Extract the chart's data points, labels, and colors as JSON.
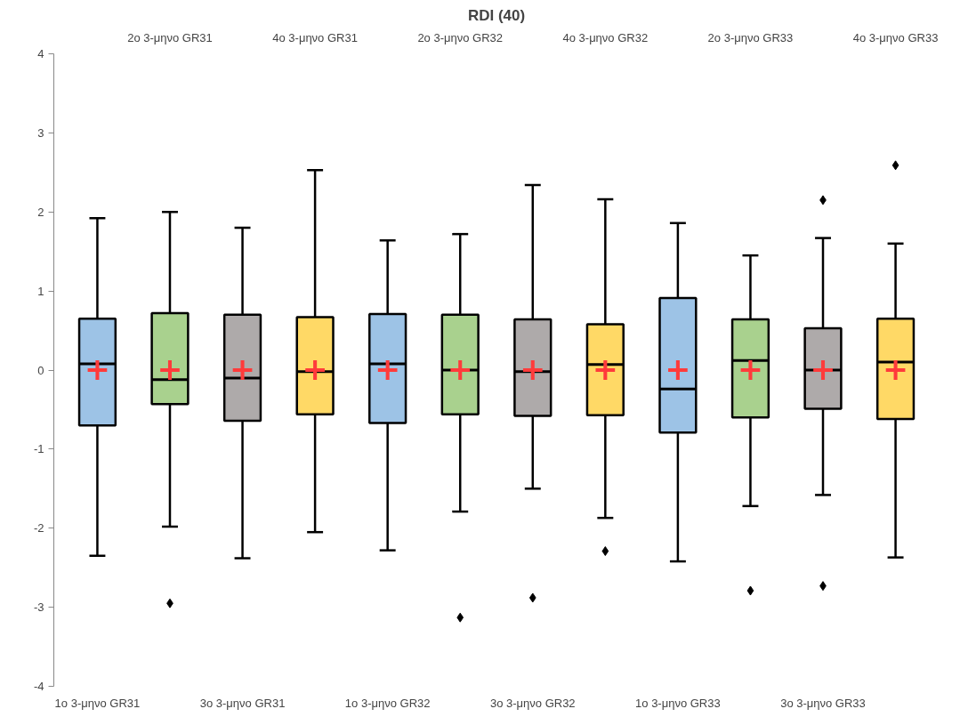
{
  "chart_data": {
    "type": "box",
    "title": "RDI (40)",
    "categories": [
      "1o 3-μηνο GR31",
      "2o 3-μηνο GR31",
      "3o 3-μηνο GR31",
      "4o 3-μηνο GR31",
      "1o 3-μηνο GR32",
      "2o 3-μηνο GR32",
      "3o 3-μηνο GR32",
      "4o 3-μηνο GR32",
      "1o 3-μηνο GR33",
      "2o 3-μηνο GR33",
      "3o 3-μηνο GR33",
      "4o 3-μηνο GR33"
    ],
    "colors": [
      "#9dc3e6",
      "#a9d18e",
      "#aeaaaa",
      "#ffd966",
      "#9dc3e6",
      "#a9d18e",
      "#aeaaaa",
      "#ffd966",
      "#9dc3e6",
      "#a9d18e",
      "#aeaaaa",
      "#ffd966"
    ],
    "boxes": [
      {
        "low": -2.35,
        "q1": -0.7,
        "median": 0.08,
        "q3": 0.65,
        "high": 1.92,
        "mean": 0
      },
      {
        "low": -1.98,
        "q1": -0.43,
        "median": -0.12,
        "q3": 0.72,
        "high": 2.0,
        "mean": 0,
        "outliers": [
          -2.95
        ]
      },
      {
        "low": -2.38,
        "q1": -0.64,
        "median": -0.1,
        "q3": 0.7,
        "high": 1.8,
        "mean": 0
      },
      {
        "low": -2.05,
        "q1": -0.56,
        "median": -0.02,
        "q3": 0.67,
        "high": 2.53,
        "mean": 0
      },
      {
        "low": -2.28,
        "q1": -0.67,
        "median": 0.08,
        "q3": 0.71,
        "high": 1.64,
        "mean": 0
      },
      {
        "low": -1.79,
        "q1": -0.56,
        "median": 0.0,
        "q3": 0.7,
        "high": 1.72,
        "mean": 0,
        "outliers": [
          -3.13
        ]
      },
      {
        "low": -1.5,
        "q1": -0.58,
        "median": -0.02,
        "q3": 0.64,
        "high": 2.34,
        "mean": 0,
        "outliers": [
          -2.88
        ]
      },
      {
        "low": -1.87,
        "q1": -0.57,
        "median": 0.07,
        "q3": 0.58,
        "high": 2.16,
        "mean": 0,
        "outliers": [
          -2.29
        ]
      },
      {
        "low": -2.42,
        "q1": -0.79,
        "median": -0.24,
        "q3": 0.91,
        "high": 1.86,
        "mean": 0
      },
      {
        "low": -1.72,
        "q1": -0.6,
        "median": 0.12,
        "q3": 0.64,
        "high": 1.45,
        "mean": 0,
        "outliers": [
          -2.79
        ]
      },
      {
        "low": -1.58,
        "q1": -0.49,
        "median": 0.0,
        "q3": 0.53,
        "high": 1.67,
        "mean": 0,
        "outliers": [
          2.15,
          -2.73
        ]
      },
      {
        "low": -2.37,
        "q1": -0.62,
        "median": 0.1,
        "q3": 0.65,
        "high": 1.6,
        "mean": 0,
        "outliers": [
          2.59
        ]
      }
    ],
    "ylim": [
      -4,
      4
    ],
    "yticks": [
      -4,
      -3,
      -2,
      -1,
      0,
      1,
      2,
      3,
      4
    ],
    "grid": false,
    "marker": "cross"
  }
}
